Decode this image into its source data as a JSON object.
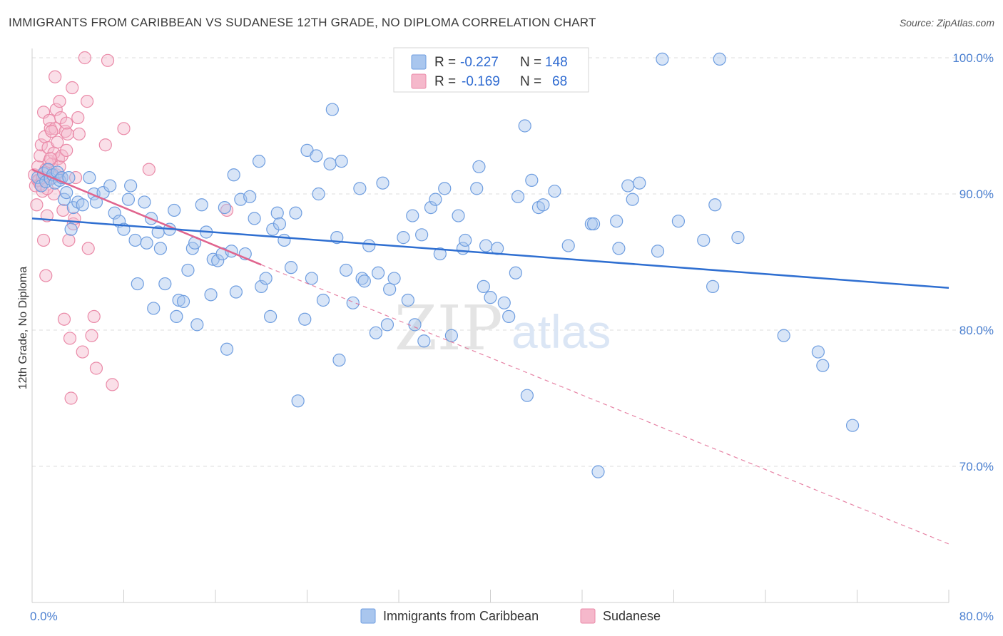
{
  "title": "IMMIGRANTS FROM CARIBBEAN VS SUDANESE 12TH GRADE, NO DIPLOMA CORRELATION CHART",
  "source": "Source: ZipAtlas.com",
  "watermark": {
    "zip": "ZIP",
    "atlas": "atlas"
  },
  "colors": {
    "blue_fill": "#a9c6ee",
    "blue_stroke": "#6f9ee0",
    "blue_line": "#2f6fd1",
    "pink_fill": "#f5b8cb",
    "pink_stroke": "#ea8aa8",
    "pink_line": "#e0648e",
    "tick_text": "#4a7fd0",
    "grid": "#dddddd"
  },
  "legend": {
    "rows": [
      {
        "r_label": "R =",
        "r_value": "-0.227",
        "n_label": "N =",
        "n_value": "148"
      },
      {
        "r_label": "R =",
        "r_value": "-0.169",
        "n_label": "N =",
        "n_value": "68"
      }
    ]
  },
  "bottom_legend": [
    "Immigrants from Caribbean",
    "Sudanese"
  ],
  "chart_data": {
    "type": "scatter",
    "xlabel": "",
    "ylabel": "12th Grade, No Diploma",
    "xlim": [
      0,
      80
    ],
    "ylim": [
      62,
      101.5
    ],
    "x_tick_labels": [
      {
        "value": 0,
        "label": "0.0%"
      },
      {
        "value": 80,
        "label": "80.0%"
      }
    ],
    "y_tick_labels": [
      {
        "value": 70,
        "label": "70.0%"
      },
      {
        "value": 80,
        "label": "80.0%"
      },
      {
        "value": 90,
        "label": "90.0%"
      },
      {
        "value": 100,
        "label": "100.0%"
      }
    ],
    "grid": true,
    "legend_position": "top-center",
    "series": [
      {
        "name": "Immigrants from Caribbean",
        "color": "#a9c6ee",
        "trend": {
          "x": [
            0,
            80
          ],
          "y": [
            88.2,
            83.1
          ],
          "dashed_extension": false
        },
        "points": [
          [
            0.5,
            91.2
          ],
          [
            0.8,
            90.6
          ],
          [
            1.0,
            91.5
          ],
          [
            1.2,
            90.9
          ],
          [
            1.4,
            91.8
          ],
          [
            1.6,
            91.1
          ],
          [
            1.8,
            91.4
          ],
          [
            2.0,
            90.8
          ],
          [
            2.2,
            91.6
          ],
          [
            2.4,
            91.0
          ],
          [
            2.6,
            91.2
          ],
          [
            2.8,
            89.6
          ],
          [
            3.0,
            90.1
          ],
          [
            3.2,
            91.2
          ],
          [
            3.4,
            87.4
          ],
          [
            3.6,
            89.0
          ],
          [
            4.0,
            89.4
          ],
          [
            4.4,
            89.2
          ],
          [
            5.0,
            91.2
          ],
          [
            5.4,
            90.0
          ],
          [
            5.6,
            89.4
          ],
          [
            6.2,
            90.1
          ],
          [
            6.8,
            90.6
          ],
          [
            7.2,
            88.6
          ],
          [
            7.6,
            88.0
          ],
          [
            8.0,
            87.4
          ],
          [
            8.4,
            89.6
          ],
          [
            8.6,
            90.6
          ],
          [
            9.0,
            86.6
          ],
          [
            9.2,
            83.4
          ],
          [
            9.8,
            89.4
          ],
          [
            10.0,
            86.4
          ],
          [
            10.4,
            88.2
          ],
          [
            10.6,
            81.6
          ],
          [
            11.0,
            87.2
          ],
          [
            11.2,
            86.0
          ],
          [
            11.6,
            83.4
          ],
          [
            12.0,
            87.4
          ],
          [
            12.4,
            88.8
          ],
          [
            12.6,
            81.0
          ],
          [
            12.8,
            82.2
          ],
          [
            13.2,
            82.1
          ],
          [
            13.6,
            84.4
          ],
          [
            14.0,
            86.0
          ],
          [
            14.2,
            86.4
          ],
          [
            14.4,
            80.4
          ],
          [
            14.8,
            89.2
          ],
          [
            15.2,
            87.2
          ],
          [
            15.6,
            82.6
          ],
          [
            15.8,
            85.2
          ],
          [
            16.2,
            85.1
          ],
          [
            16.6,
            85.6
          ],
          [
            16.8,
            89.0
          ],
          [
            17.0,
            78.6
          ],
          [
            17.4,
            85.8
          ],
          [
            17.6,
            91.4
          ],
          [
            17.8,
            82.8
          ],
          [
            18.2,
            89.6
          ],
          [
            18.6,
            85.6
          ],
          [
            19.0,
            89.8
          ],
          [
            19.4,
            88.2
          ],
          [
            19.8,
            92.4
          ],
          [
            20.0,
            83.2
          ],
          [
            20.4,
            83.8
          ],
          [
            20.8,
            81.0
          ],
          [
            21.0,
            87.4
          ],
          [
            21.4,
            88.6
          ],
          [
            21.6,
            87.8
          ],
          [
            22.0,
            86.6
          ],
          [
            22.6,
            84.6
          ],
          [
            23.0,
            88.6
          ],
          [
            23.2,
            74.8
          ],
          [
            23.8,
            80.8
          ],
          [
            24.0,
            93.2
          ],
          [
            24.4,
            83.8
          ],
          [
            24.8,
            92.8
          ],
          [
            25.0,
            90.0
          ],
          [
            25.4,
            82.2
          ],
          [
            26.0,
            92.2
          ],
          [
            26.2,
            96.2
          ],
          [
            26.6,
            86.8
          ],
          [
            26.8,
            77.8
          ],
          [
            27.0,
            92.4
          ],
          [
            27.4,
            84.4
          ],
          [
            28.0,
            82.0
          ],
          [
            28.6,
            90.4
          ],
          [
            28.8,
            83.8
          ],
          [
            29.0,
            83.6
          ],
          [
            29.4,
            86.2
          ],
          [
            30.0,
            79.8
          ],
          [
            30.2,
            84.2
          ],
          [
            30.6,
            90.8
          ],
          [
            31.0,
            80.4
          ],
          [
            31.2,
            83.0
          ],
          [
            31.6,
            83.8
          ],
          [
            32.4,
            86.8
          ],
          [
            32.8,
            82.2
          ],
          [
            33.2,
            88.4
          ],
          [
            33.4,
            80.4
          ],
          [
            34.0,
            87.0
          ],
          [
            34.2,
            79.2
          ],
          [
            34.8,
            89.0
          ],
          [
            35.2,
            89.6
          ],
          [
            35.6,
            85.6
          ],
          [
            36.0,
            90.4
          ],
          [
            36.6,
            79.6
          ],
          [
            37.2,
            88.4
          ],
          [
            37.6,
            86.0
          ],
          [
            37.8,
            86.6
          ],
          [
            38.8,
            90.4
          ],
          [
            39.0,
            92.0
          ],
          [
            39.4,
            83.2
          ],
          [
            39.6,
            86.2
          ],
          [
            40.0,
            82.4
          ],
          [
            40.6,
            86.0
          ],
          [
            41.2,
            82.0
          ],
          [
            41.6,
            81.0
          ],
          [
            42.2,
            84.2
          ],
          [
            42.4,
            89.8
          ],
          [
            43.0,
            95.0
          ],
          [
            43.2,
            75.2
          ],
          [
            43.6,
            91.0
          ],
          [
            44.2,
            89.0
          ],
          [
            44.6,
            89.2
          ],
          [
            45.6,
            90.2
          ],
          [
            46.8,
            86.2
          ],
          [
            48.8,
            87.8
          ],
          [
            49.0,
            87.8
          ],
          [
            49.4,
            69.6
          ],
          [
            51.0,
            88.0
          ],
          [
            51.2,
            86.0
          ],
          [
            52.0,
            90.6
          ],
          [
            52.4,
            89.6
          ],
          [
            53.0,
            90.8
          ],
          [
            54.6,
            85.8
          ],
          [
            55.0,
            99.9
          ],
          [
            56.4,
            88.0
          ],
          [
            58.6,
            86.6
          ],
          [
            59.4,
            83.2
          ],
          [
            59.6,
            89.2
          ],
          [
            60.0,
            99.9
          ],
          [
            61.6,
            86.8
          ],
          [
            65.6,
            79.6
          ],
          [
            68.6,
            78.4
          ],
          [
            69.0,
            77.4
          ],
          [
            71.6,
            73.0
          ]
        ]
      },
      {
        "name": "Sudanese",
        "color": "#f5b8cb",
        "trend": {
          "x": [
            0,
            20
          ],
          "y": [
            91.8,
            84.8
          ],
          "dashed_extension": true,
          "dashed_to": {
            "x": 80,
            "y": 64.3
          }
        },
        "points": [
          [
            0.2,
            91.4
          ],
          [
            0.3,
            90.6
          ],
          [
            0.4,
            89.2
          ],
          [
            0.5,
            92.0
          ],
          [
            0.6,
            91.0
          ],
          [
            0.7,
            92.8
          ],
          [
            0.8,
            93.6
          ],
          [
            0.9,
            90.2
          ],
          [
            1.0,
            96.0
          ],
          [
            1.0,
            86.6
          ],
          [
            1.1,
            94.2
          ],
          [
            1.2,
            91.8
          ],
          [
            1.2,
            84.0
          ],
          [
            1.3,
            88.4
          ],
          [
            1.4,
            93.4
          ],
          [
            1.5,
            95.4
          ],
          [
            1.6,
            94.8
          ],
          [
            1.7,
            92.2
          ],
          [
            1.8,
            91.2
          ],
          [
            1.9,
            90.0
          ],
          [
            2.0,
            98.6
          ],
          [
            2.0,
            94.8
          ],
          [
            2.1,
            96.2
          ],
          [
            2.2,
            93.8
          ],
          [
            2.3,
            92.6
          ],
          [
            2.4,
            96.8
          ],
          [
            2.5,
            95.6
          ],
          [
            2.6,
            91.2
          ],
          [
            2.7,
            88.8
          ],
          [
            2.8,
            80.8
          ],
          [
            2.9,
            94.6
          ],
          [
            3.0,
            95.2
          ],
          [
            3.1,
            94.4
          ],
          [
            3.2,
            86.6
          ],
          [
            3.3,
            79.4
          ],
          [
            3.4,
            75.0
          ],
          [
            3.5,
            97.8
          ],
          [
            3.6,
            87.8
          ],
          [
            3.7,
            88.2
          ],
          [
            3.8,
            91.2
          ],
          [
            4.0,
            95.6
          ],
          [
            4.1,
            94.4
          ],
          [
            4.4,
            78.4
          ],
          [
            4.6,
            100.0
          ],
          [
            4.8,
            96.8
          ],
          [
            4.9,
            86.0
          ],
          [
            5.2,
            79.6
          ],
          [
            5.4,
            81.0
          ],
          [
            5.6,
            77.2
          ],
          [
            6.4,
            93.6
          ],
          [
            6.6,
            99.8
          ],
          [
            7.0,
            76.0
          ],
          [
            8.0,
            94.8
          ],
          [
            10.2,
            91.8
          ],
          [
            17.0,
            88.8
          ],
          [
            0.5,
            91.0
          ],
          [
            0.7,
            90.7
          ],
          [
            1.1,
            91.6
          ],
          [
            1.5,
            92.4
          ],
          [
            1.9,
            93.0
          ],
          [
            2.1,
            91.4
          ],
          [
            2.4,
            92.0
          ],
          [
            0.9,
            91.2
          ],
          [
            1.3,
            90.4
          ],
          [
            1.7,
            94.6
          ],
          [
            2.6,
            92.8
          ],
          [
            3.0,
            93.2
          ],
          [
            1.6,
            92.6
          ]
        ]
      }
    ]
  }
}
